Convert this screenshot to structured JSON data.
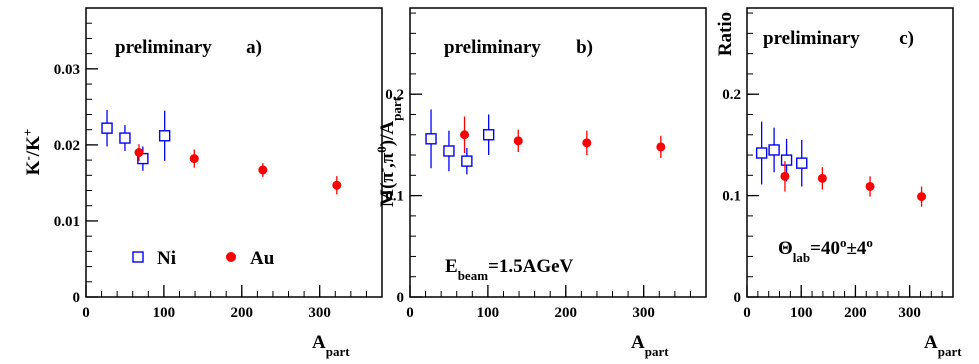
{
  "chart_data": [
    {
      "type": "scatter",
      "title": "",
      "xlabel_main": "A",
      "xlabel_sub": "part",
      "ylabel_parts": [
        {
          "t": "K",
          "s": "normal"
        },
        {
          "t": "-",
          "s": "sup"
        },
        {
          "t": "/K",
          "s": "normal"
        },
        {
          "t": "+",
          "s": "sup"
        }
      ],
      "xlim": [
        0,
        380
      ],
      "ylim": [
        0,
        0.038
      ],
      "xticks": [
        0,
        100,
        200,
        300
      ],
      "xtick_labels": [
        "0",
        "100",
        "200",
        "300"
      ],
      "yticks": [
        0,
        0.01,
        0.02,
        0.03
      ],
      "ytick_labels": [
        "0",
        "0.01",
        "0.02",
        "0.03"
      ],
      "annotations": {
        "preliminary": "preliminary",
        "panel": "a)"
      },
      "legend": [
        {
          "marker": "open-square",
          "color": "#0000ff",
          "label": "Ni"
        },
        {
          "marker": "filled-circle",
          "color": "#ff0000",
          "label": "Au"
        }
      ],
      "series": [
        {
          "name": "Ni",
          "marker": "open-square",
          "color": "#0000ff",
          "points": [
            {
              "x": 27,
              "y": 0.0222,
              "err": 0.0024
            },
            {
              "x": 50,
              "y": 0.0209,
              "err": 0.0017
            },
            {
              "x": 73,
              "y": 0.0182,
              "err": 0.0016
            },
            {
              "x": 101,
              "y": 0.0212,
              "err": 0.0033
            }
          ]
        },
        {
          "name": "Au",
          "marker": "filled-circle",
          "color": "#ff0000",
          "points": [
            {
              "x": 68,
              "y": 0.019,
              "err": 0.0011
            },
            {
              "x": 139,
              "y": 0.0182,
              "err": 0.0012
            },
            {
              "x": 227,
              "y": 0.0167,
              "err": 0.0009
            },
            {
              "x": 322,
              "y": 0.0147,
              "err": 0.0012
            }
          ]
        }
      ]
    },
    {
      "type": "scatter",
      "title": "",
      "xlabel_main": "A",
      "xlabel_sub": "part",
      "ylabel_parts": [
        {
          "t": "M(",
          "s": "normal"
        },
        {
          "t": "π",
          "s": "normal"
        },
        {
          "t": "-",
          "s": "sup"
        },
        {
          "t": ",",
          "s": "normal"
        },
        {
          "t": "π",
          "s": "normal"
        },
        {
          "t": "0",
          "s": "sup"
        },
        {
          "t": ")/A",
          "s": "normal"
        },
        {
          "t": "part",
          "s": "sub"
        }
      ],
      "xlim": [
        0,
        380
      ],
      "ylim": [
        0,
        0.285
      ],
      "xticks": [
        0,
        100,
        200,
        300
      ],
      "xtick_labels": [
        "0",
        "100",
        "200",
        "300"
      ],
      "yticks": [
        0,
        0.1,
        0.2
      ],
      "ytick_labels": [
        "0",
        "0.1",
        "0.2"
      ],
      "annotations": {
        "preliminary": "preliminary",
        "panel": "b)",
        "condition": [
          {
            "t": "E",
            "s": "normal"
          },
          {
            "t": "beam",
            "s": "sub"
          },
          {
            "t": "=1.5AGeV",
            "s": "normal"
          }
        ]
      },
      "series": [
        {
          "name": "Ni",
          "marker": "open-square",
          "color": "#0000ff",
          "points": [
            {
              "x": 27,
              "y": 0.156,
              "err": 0.029
            },
            {
              "x": 50,
              "y": 0.144,
              "err": 0.02
            },
            {
              "x": 73,
              "y": 0.134,
              "err": 0.013
            },
            {
              "x": 101,
              "y": 0.16,
              "err": 0.02
            }
          ]
        },
        {
          "name": "Au",
          "marker": "filled-circle",
          "color": "#ff0000",
          "points": [
            {
              "x": 70,
              "y": 0.16,
              "err": 0.018
            },
            {
              "x": 139,
              "y": 0.154,
              "err": 0.011
            },
            {
              "x": 227,
              "y": 0.152,
              "err": 0.012
            },
            {
              "x": 322,
              "y": 0.148,
              "err": 0.011
            }
          ]
        }
      ]
    },
    {
      "type": "scatter",
      "title": "",
      "xlabel_main": "A",
      "xlabel_sub": "part",
      "ylabel_parts": [
        {
          "t": "Ratio",
          "s": "normal"
        }
      ],
      "xlim": [
        0,
        380
      ],
      "ylim": [
        0,
        0.285
      ],
      "xticks": [
        0,
        100,
        200,
        300
      ],
      "xtick_labels": [
        "0",
        "100",
        "200",
        "300"
      ],
      "yticks": [
        0,
        0.1,
        0.2
      ],
      "ytick_labels": [
        "0",
        "0.1",
        "0.2"
      ],
      "annotations": {
        "preliminary": "preliminary",
        "panel": "c)",
        "condition": [
          {
            "t": "Θ",
            "s": "normal"
          },
          {
            "t": "lab",
            "s": "sub"
          },
          {
            "t": "=40",
            "s": "normal"
          },
          {
            "t": "o",
            "s": "sup"
          },
          {
            "t": "±4",
            "s": "normal"
          },
          {
            "t": "o",
            "s": "sup"
          }
        ]
      },
      "series": [
        {
          "name": "Ni",
          "marker": "open-square",
          "color": "#0000ff",
          "points": [
            {
              "x": 27,
              "y": 0.142,
              "err": 0.031
            },
            {
              "x": 50,
              "y": 0.145,
              "err": 0.022
            },
            {
              "x": 73,
              "y": 0.135,
              "err": 0.021
            },
            {
              "x": 101,
              "y": 0.132,
              "err": 0.023
            }
          ]
        },
        {
          "name": "Au",
          "marker": "filled-circle",
          "color": "#ff0000",
          "points": [
            {
              "x": 70,
              "y": 0.119,
              "err": 0.015
            },
            {
              "x": 139,
              "y": 0.117,
              "err": 0.011
            },
            {
              "x": 227,
              "y": 0.109,
              "err": 0.01
            },
            {
              "x": 322,
              "y": 0.099,
              "err": 0.01
            }
          ]
        }
      ]
    }
  ]
}
